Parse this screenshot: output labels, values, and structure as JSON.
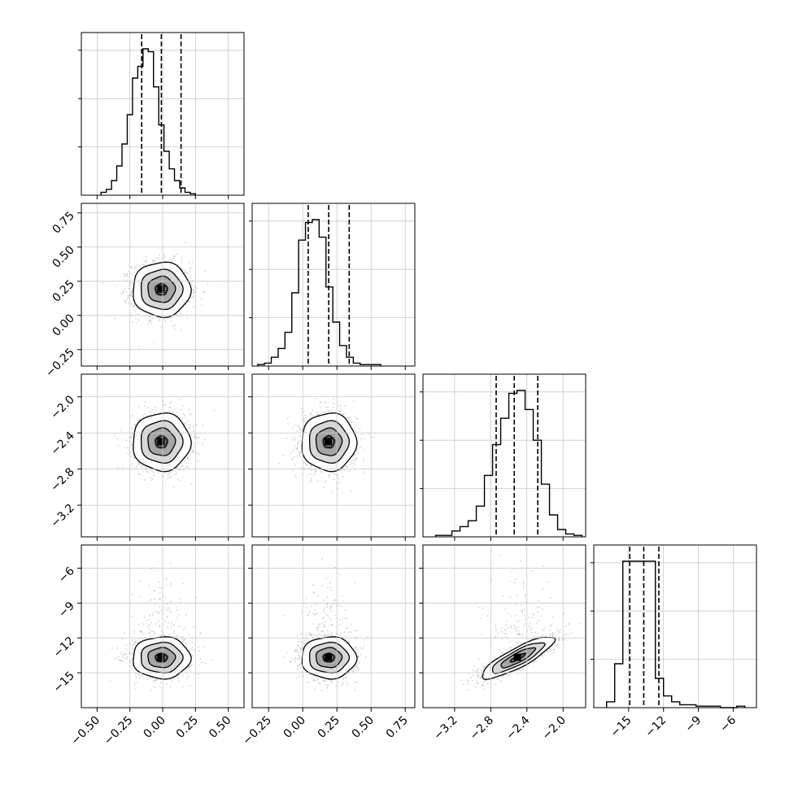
{
  "figure": {
    "type": "corner_plot",
    "parameters": 4,
    "background": "#ffffff",
    "grid": true,
    "hist_color": "#000000",
    "quantile_line_style": "dashed",
    "scatter_point_color": "#a0a0a0",
    "contour_color": "#000000"
  },
  "chart_data": [
    {
      "type": "histogram",
      "id": "p1",
      "param": 0,
      "xlim": [
        -0.62,
        0.62
      ],
      "xticks": [
        -0.5,
        -0.25,
        0.0,
        0.25,
        0.5
      ],
      "tick_labels": [
        "−0.50",
        "−0.25",
        "0.00",
        "0.25",
        "0.50"
      ],
      "bins_start": -0.47,
      "bin_width": 0.04,
      "counts": [
        2,
        4,
        10,
        20,
        35,
        55,
        80,
        88,
        100,
        98,
        74,
        48,
        30,
        18,
        10,
        5,
        2,
        1
      ],
      "quantiles": [
        -0.16,
        -0.01,
        0.14
      ]
    },
    {
      "type": "histogram",
      "id": "p2",
      "param": 1,
      "xlim": [
        -0.37,
        0.82
      ],
      "xticks": [
        -0.25,
        0.0,
        0.25,
        0.5,
        0.75
      ],
      "tick_labels": [
        "−0.25",
        "0.00",
        "0.25",
        "0.50",
        "0.75"
      ],
      "bins_start": -0.33,
      "bin_width": 0.05,
      "counts": [
        1,
        2,
        6,
        12,
        23,
        50,
        86,
        98,
        100,
        88,
        54,
        30,
        14,
        6,
        2,
        1,
        1,
        1
      ],
      "quantiles": [
        0.04,
        0.19,
        0.34
      ]
    },
    {
      "type": "histogram",
      "id": "p3",
      "param": 2,
      "xlim": [
        -3.55,
        -1.75
      ],
      "xticks": [
        -3.2,
        -2.8,
        -2.4,
        -2.0
      ],
      "tick_labels": [
        "−3.2",
        "−2.8",
        "−2.4",
        "−2.0"
      ],
      "bins_start": -3.41,
      "bin_width": 0.09,
      "counts": [
        1,
        1,
        4,
        7,
        11,
        21,
        42,
        63,
        81,
        98,
        100,
        87,
        66,
        36,
        15,
        5,
        2,
        1
      ],
      "quantiles": [
        -2.74,
        -2.54,
        -2.28
      ]
    },
    {
      "type": "histogram",
      "id": "p4",
      "param": 3,
      "xlim": [
        -18.0,
        -4.0
      ],
      "xticks": [
        -15,
        -12,
        -9,
        -6
      ],
      "tick_labels": [
        "−15",
        "−12",
        "−9",
        "−6"
      ],
      "bins_start": -16.9,
      "bin_width": 0.7,
      "counts": [
        4,
        30,
        100,
        100,
        100,
        100,
        20,
        8,
        4,
        2,
        2,
        1,
        1,
        1,
        0,
        0,
        1
      ],
      "quantiles": [
        -14.9,
        -13.7,
        -12.4
      ]
    },
    {
      "type": "contour",
      "id": "c21",
      "x_param": 0,
      "y_param": 1,
      "ylim": [
        -0.37,
        0.82
      ],
      "yticks": [
        -0.25,
        0.0,
        0.25,
        0.5,
        0.75
      ],
      "ytick_labels": [
        "−0.25",
        "0.00",
        "0.25",
        "0.50",
        "0.75"
      ],
      "center": [
        -0.01,
        0.19
      ],
      "sd": [
        0.11,
        0.1
      ],
      "rho": 0.0
    },
    {
      "type": "contour",
      "id": "c31",
      "x_param": 0,
      "y_param": 2,
      "ylim": [
        -3.55,
        -1.75
      ],
      "yticks": [
        -3.2,
        -2.8,
        -2.4,
        -2.0
      ],
      "ytick_labels": [
        "−3.2",
        "−2.8",
        "−2.4",
        "−2.0"
      ],
      "center": [
        -0.01,
        -2.5
      ],
      "sd": [
        0.11,
        0.16
      ],
      "rho": 0.0
    },
    {
      "type": "contour",
      "id": "c32",
      "x_param": 1,
      "y_param": 2,
      "center": [
        0.19,
        -2.5
      ],
      "sd": [
        0.1,
        0.16
      ],
      "rho": 0.0
    },
    {
      "type": "contour",
      "id": "c41",
      "x_param": 0,
      "y_param": 3,
      "ylim": [
        -18.0,
        -4.0
      ],
      "yticks": [
        -15,
        -12,
        -9,
        -6
      ],
      "ytick_labels": [
        "−15",
        "−12",
        "−9",
        "−6"
      ],
      "center": [
        -0.01,
        -13.7
      ],
      "sd": [
        0.11,
        0.9
      ],
      "rho": 0.0,
      "upper_tail": true
    },
    {
      "type": "contour",
      "id": "c42",
      "x_param": 1,
      "y_param": 3,
      "center": [
        0.19,
        -13.7
      ],
      "sd": [
        0.1,
        0.9
      ],
      "rho": 0.0,
      "upper_tail": true
    },
    {
      "type": "contour",
      "id": "c43",
      "x_param": 2,
      "y_param": 3,
      "center": [
        -2.5,
        -13.7
      ],
      "sd": [
        0.2,
        0.9
      ],
      "rho": 0.85,
      "upper_tail": true
    }
  ]
}
